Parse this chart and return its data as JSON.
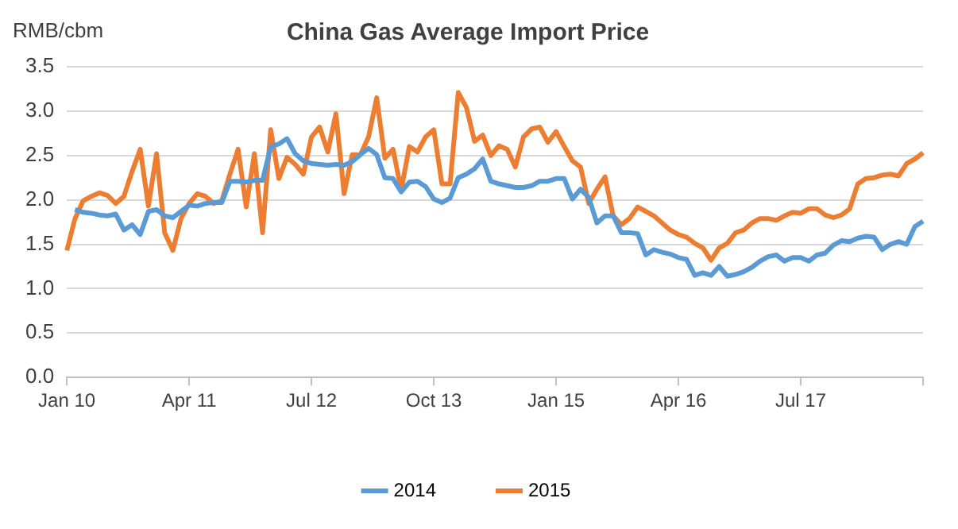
{
  "chart_data": {
    "type": "line",
    "title": "China Gas Average Import Price",
    "ylabel": "RMB/cbm",
    "categories": [
      "Jan 10",
      null,
      null,
      null,
      null,
      null,
      null,
      null,
      null,
      null,
      null,
      null,
      null,
      null,
      null,
      "Apr 11",
      null,
      null,
      null,
      null,
      null,
      null,
      null,
      null,
      null,
      null,
      null,
      null,
      null,
      null,
      "Jul 12",
      null,
      null,
      null,
      null,
      null,
      null,
      null,
      null,
      null,
      null,
      null,
      null,
      null,
      null,
      "Oct 13",
      null,
      null,
      null,
      null,
      null,
      null,
      null,
      null,
      null,
      null,
      null,
      null,
      null,
      null,
      "Jan 15",
      null,
      null,
      null,
      null,
      null,
      null,
      null,
      null,
      null,
      null,
      null,
      null,
      null,
      null,
      "Apr 16",
      null,
      null,
      null,
      null,
      null,
      null,
      null,
      null,
      null,
      null,
      null,
      null,
      null,
      null,
      "Jul 17",
      null,
      null,
      null,
      null,
      null,
      null,
      null,
      null,
      null,
      null,
      null,
      null,
      null,
      null,
      null
    ],
    "series": [
      {
        "name": "2014",
        "color": "#5b9bd5",
        "values": [
          null,
          1.89,
          1.86,
          1.85,
          1.83,
          1.82,
          1.84,
          1.66,
          1.72,
          1.61,
          1.87,
          1.89,
          1.82,
          1.8,
          1.87,
          1.94,
          1.93,
          1.96,
          1.97,
          1.97,
          2.21,
          2.21,
          2.2,
          2.22,
          2.22,
          2.6,
          2.63,
          2.69,
          2.52,
          2.44,
          2.41,
          2.4,
          2.39,
          2.4,
          2.39,
          2.43,
          2.51,
          2.58,
          2.51,
          2.25,
          2.24,
          2.09,
          2.2,
          2.21,
          2.15,
          2.01,
          1.97,
          2.02,
          2.25,
          2.29,
          2.35,
          2.46,
          2.21,
          2.18,
          2.16,
          2.14,
          2.14,
          2.16,
          2.21,
          2.21,
          2.24,
          2.24,
          2.01,
          2.12,
          2.03,
          1.74,
          1.82,
          1.82,
          1.63,
          1.63,
          1.62,
          1.38,
          1.44,
          1.41,
          1.39,
          1.35,
          1.33,
          1.15,
          1.18,
          1.15,
          1.25,
          1.14,
          1.16,
          1.19,
          1.24,
          1.31,
          1.36,
          1.38,
          1.31,
          1.35,
          1.35,
          1.31,
          1.38,
          1.4,
          1.49,
          1.54,
          1.53,
          1.57,
          1.59,
          1.58,
          1.44,
          1.5,
          1.53,
          1.5,
          1.7,
          1.76
        ]
      },
      {
        "name": "2015",
        "color": "#ed7d31",
        "values": [
          1.43,
          1.79,
          1.99,
          2.04,
          2.08,
          2.05,
          1.96,
          2.04,
          2.32,
          2.57,
          1.93,
          2.52,
          1.63,
          1.43,
          1.79,
          1.96,
          2.07,
          2.04,
          1.96,
          1.99,
          2.29,
          2.57,
          1.92,
          2.52,
          1.63,
          2.79,
          2.24,
          2.48,
          2.4,
          2.29,
          2.71,
          2.82,
          2.54,
          2.97,
          2.07,
          2.51,
          2.51,
          2.71,
          3.15,
          2.47,
          2.57,
          2.11,
          2.6,
          2.54,
          2.71,
          2.79,
          2.18,
          2.18,
          3.21,
          3.04,
          2.66,
          2.73,
          2.5,
          2.61,
          2.57,
          2.37,
          2.71,
          2.8,
          2.82,
          2.65,
          2.77,
          2.6,
          2.44,
          2.37,
          1.96,
          2.12,
          2.26,
          1.82,
          1.72,
          1.79,
          1.92,
          1.87,
          1.82,
          1.74,
          1.66,
          1.61,
          1.58,
          1.51,
          1.46,
          1.32,
          1.46,
          1.51,
          1.63,
          1.66,
          1.74,
          1.79,
          1.79,
          1.77,
          1.82,
          1.86,
          1.85,
          1.9,
          1.9,
          1.83,
          1.8,
          1.83,
          1.9,
          2.18,
          2.24,
          2.25,
          2.28,
          2.29,
          2.27,
          2.41,
          2.46,
          2.53
        ]
      }
    ],
    "ylim": [
      0,
      3.5
    ],
    "yticks": [
      {
        "value": 0,
        "label": "0.0"
      },
      {
        "value": 0.5,
        "label": "0.5"
      },
      {
        "value": 1,
        "label": "1.0"
      },
      {
        "value": 1.5,
        "label": "1.5"
      },
      {
        "value": 2,
        "label": "2.0"
      },
      {
        "value": 2.5,
        "label": "2.5"
      },
      {
        "value": 3,
        "label": "3.0"
      },
      {
        "value": 3.5,
        "label": "3.5"
      }
    ],
    "grid": "y",
    "legend": "bottom",
    "marker": "none",
    "line_style": "solid"
  }
}
